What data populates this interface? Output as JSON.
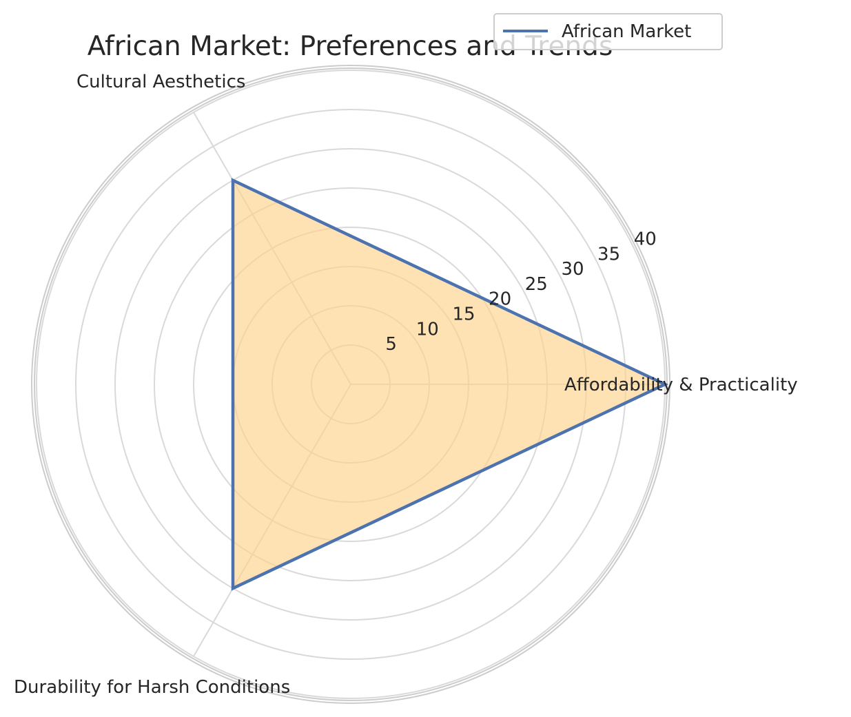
{
  "chart_data": {
    "type": "radar",
    "title": "African Market: Preferences and Trends",
    "categories": [
      "Affordability & Practicality",
      "Cultural Aesthetics",
      "Durability for Harsh Conditions"
    ],
    "series": [
      {
        "name": "African Market",
        "values": [
          40,
          30,
          30
        ]
      }
    ],
    "radial_ticks": [
      "5",
      "10",
      "15",
      "20",
      "25",
      "30",
      "35",
      "40"
    ],
    "rlim": [
      0,
      40
    ],
    "grid": true,
    "legend_position": "top-right",
    "colors": {
      "line": "#4c72b0",
      "fill": "#fdd38a",
      "grid": "#d9d9d9",
      "spine": "#cccccc"
    }
  }
}
